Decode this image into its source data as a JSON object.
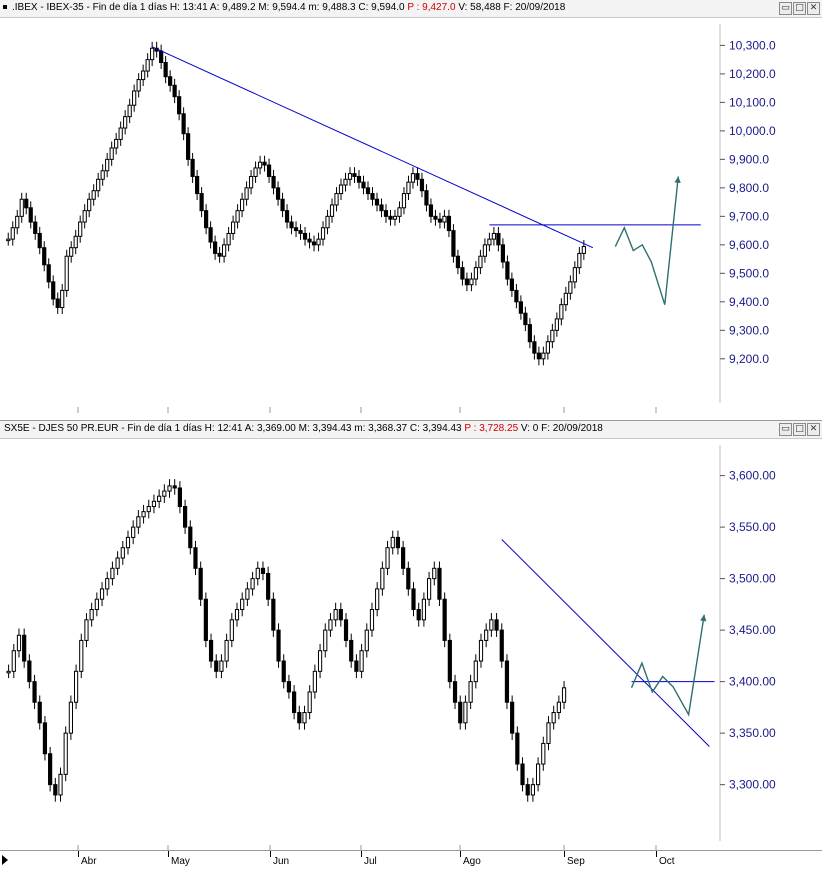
{
  "top_panel": {
    "title": ".IBEX - IBEX-35 - Fin de día 1 días",
    "fields": [
      {
        "label": "H:",
        "value": "13:41"
      },
      {
        "label": "A:",
        "value": "9,489.2"
      },
      {
        "label": "M:",
        "value": "9,594.4"
      },
      {
        "label": "m:",
        "value": "9,488.3"
      },
      {
        "label": "C:",
        "value": "9,594.0"
      },
      {
        "label": "P :",
        "value": "9,427.0"
      },
      {
        "label": "V:",
        "value": "58,488"
      },
      {
        "label": "F:",
        "value": "20/09/2018"
      }
    ]
  },
  "bottom_panel": {
    "title": "SX5E - DJES 50 PR.EUR - Fin de día 1 días",
    "fields": [
      {
        "label": "H:",
        "value": "12:41"
      },
      {
        "label": "A:",
        "value": "3,369.00"
      },
      {
        "label": "M:",
        "value": "3,394.43"
      },
      {
        "label": "m:",
        "value": "3,368.37"
      },
      {
        "label": "C:",
        "value": "3,394.43"
      },
      {
        "label": "P :",
        "value": "3,728.25"
      },
      {
        "label": "V:",
        "value": "0"
      },
      {
        "label": "F:",
        "value": "20/09/2018"
      }
    ]
  },
  "window_buttons": {
    "restore": "▭",
    "maximize": "□",
    "close": "✕"
  },
  "colors": {
    "candle": "#000000",
    "trendline": "#0000cc",
    "projection": "#2f6f6f",
    "axis_text": "#1a1a8a",
    "price_marker": "#d00000"
  },
  "chart_data": [
    {
      "type": "candlestick",
      "title": ".IBEX - IBEX-35",
      "ylim": [
        9080,
        10340
      ],
      "yticks": [
        9200,
        9300,
        9400,
        9500,
        9600,
        9700,
        9800,
        9900,
        10000,
        10100,
        10200,
        10300
      ],
      "ytick_labels": [
        "9,200.0",
        "9,300.0",
        "9,400.0",
        "9,500.0",
        "9,600.0",
        "9,700.0",
        "9,800.0",
        "9,900.0",
        "10,000.0",
        "10,100.0",
        "10,200.0",
        "10,300.0"
      ],
      "close": [
        9620,
        9660,
        9700,
        9760,
        9730,
        9680,
        9640,
        9590,
        9530,
        9470,
        9410,
        9380,
        9440,
        9560,
        9590,
        9630,
        9680,
        9720,
        9760,
        9790,
        9830,
        9860,
        9900,
        9940,
        9970,
        10010,
        10050,
        10090,
        10140,
        10180,
        10210,
        10250,
        10290,
        10280,
        10240,
        10190,
        10160,
        10120,
        10060,
        9990,
        9900,
        9840,
        9780,
        9720,
        9660,
        9610,
        9570,
        9560,
        9600,
        9640,
        9680,
        9720,
        9760,
        9800,
        9840,
        9870,
        9890,
        9880,
        9840,
        9800,
        9760,
        9720,
        9680,
        9660,
        9650,
        9640,
        9620,
        9610,
        9600,
        9620,
        9660,
        9700,
        9740,
        9780,
        9810,
        9830,
        9850,
        9840,
        9820,
        9800,
        9780,
        9760,
        9740,
        9720,
        9700,
        9690,
        9700,
        9730,
        9780,
        9820,
        9850,
        9830,
        9790,
        9740,
        9700,
        9690,
        9680,
        9700,
        9650,
        9560,
        9520,
        9480,
        9460,
        9480,
        9520,
        9560,
        9600,
        9620,
        9640,
        9600,
        9540,
        9480,
        9440,
        9400,
        9360,
        9320,
        9260,
        9220,
        9200,
        9220,
        9260,
        9300,
        9340,
        9390,
        9430,
        9470,
        9520,
        9570,
        9594
      ],
      "trendlines": [
        {
          "from": [
            32,
            10295
          ],
          "to": [
            130,
            9590
          ],
          "style": "solid"
        },
        {
          "from": [
            107,
            9670
          ],
          "to": [
            154,
            9670
          ],
          "style": "solid"
        }
      ],
      "projection": [
        [
          135,
          9594
        ],
        [
          137,
          9660
        ],
        [
          139,
          9580
        ],
        [
          141,
          9600
        ],
        [
          143,
          9540
        ],
        [
          146,
          9390
        ],
        [
          149,
          9840
        ]
      ],
      "x_month_labels": [
        "Abr",
        "May",
        "Jun",
        "Jul",
        "Ago",
        "Sep",
        "Oct"
      ]
    },
    {
      "type": "candlestick",
      "title": "SX5E - DJES 50 PR.EUR",
      "ylim": [
        3255,
        3620
      ],
      "yticks": [
        3300,
        3350,
        3400,
        3450,
        3500,
        3550,
        3600
      ],
      "ytick_labels": [
        "3,300.00",
        "3,350.00",
        "3,400.00",
        "3,450.00",
        "3,500.00",
        "3,550.00",
        "3,600.00"
      ],
      "close": [
        3410,
        3430,
        3445,
        3420,
        3400,
        3380,
        3360,
        3330,
        3300,
        3290,
        3310,
        3350,
        3380,
        3410,
        3440,
        3460,
        3470,
        3480,
        3490,
        3500,
        3510,
        3520,
        3530,
        3540,
        3550,
        3560,
        3565,
        3570,
        3575,
        3580,
        3585,
        3590,
        3588,
        3570,
        3550,
        3530,
        3510,
        3480,
        3440,
        3420,
        3410,
        3420,
        3440,
        3460,
        3470,
        3480,
        3490,
        3500,
        3510,
        3505,
        3480,
        3450,
        3420,
        3400,
        3390,
        3370,
        3360,
        3370,
        3390,
        3410,
        3430,
        3450,
        3460,
        3470,
        3460,
        3440,
        3420,
        3410,
        3430,
        3450,
        3470,
        3490,
        3510,
        3530,
        3540,
        3530,
        3510,
        3490,
        3470,
        3460,
        3480,
        3500,
        3510,
        3480,
        3440,
        3400,
        3380,
        3360,
        3380,
        3400,
        3420,
        3440,
        3450,
        3460,
        3450,
        3420,
        3380,
        3350,
        3320,
        3300,
        3290,
        3300,
        3320,
        3340,
        3360,
        3370,
        3380,
        3394
      ],
      "trendlines": [
        {
          "from": [
            95,
            3538
          ],
          "to": [
            135,
            3337
          ],
          "style": "solid"
        },
        {
          "from": [
            120,
            3400
          ],
          "to": [
            136,
            3400
          ],
          "style": "solid"
        }
      ],
      "projection": [
        [
          120,
          3394
        ],
        [
          122,
          3418
        ],
        [
          124,
          3390
        ],
        [
          126,
          3405
        ],
        [
          128,
          3395
        ],
        [
          131,
          3368
        ],
        [
          134,
          3465
        ]
      ],
      "x_month_labels": [
        "Abr",
        "May",
        "Jun",
        "Jul",
        "Ago",
        "Sep",
        "Oct"
      ]
    }
  ]
}
